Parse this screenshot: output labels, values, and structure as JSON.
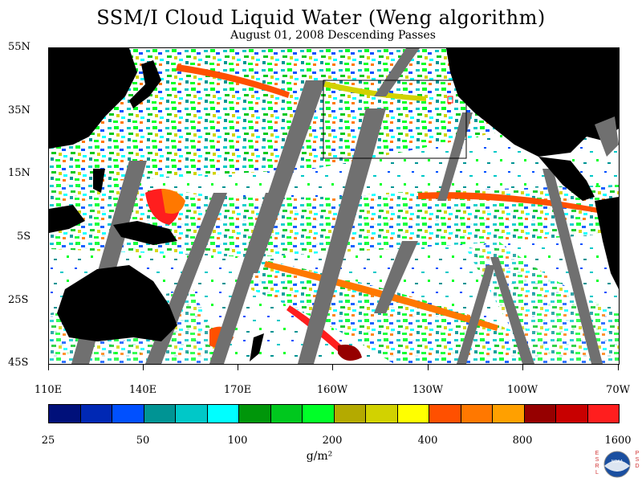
{
  "title": "SSM/I Cloud Liquid Water (Weng algorithm)",
  "subtitle": "August 01, 2008  Descending Passes",
  "lat_labels": [
    "55N",
    "35N",
    "15N",
    "5S",
    "25S",
    "45S"
  ],
  "lon_labels": [
    "110E",
    "140E",
    "170E",
    "160W",
    "130W",
    "100W",
    "70W"
  ],
  "colorbar": {
    "colors": [
      "#00107a",
      "#0028b4",
      "#0050ff",
      "#009494",
      "#00c8c8",
      "#00ffff",
      "#00960a",
      "#00c81e",
      "#00ff28",
      "#b4aa00",
      "#d2d200",
      "#ffff00",
      "#ff5000",
      "#ff7800",
      "#ffa000",
      "#960000",
      "#c80000",
      "#ff1e1e"
    ],
    "labels": [
      "25",
      "50",
      "100",
      "200",
      "400",
      "800",
      "1600"
    ],
    "units": "g/m²"
  },
  "logo": {
    "left_text": "ESRL",
    "right_text": "PSD",
    "center_text": "NOAA"
  }
}
